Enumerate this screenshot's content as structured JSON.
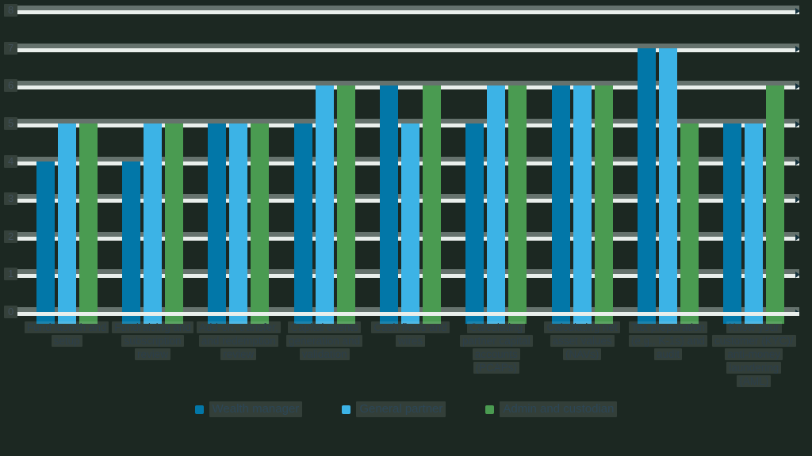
{
  "colors": {
    "background": "#1c2822",
    "gridline": "#e9efec",
    "gridline_shadow": "#77847f",
    "grid_arrow": "#15323e",
    "axis_text": "#41505a",
    "category_text": "#2c3f4a",
    "legend_text": "#2c4656",
    "series_wealth_manager": "#0277a8",
    "series_general_partner": "#3cb3e6",
    "series_admin_custodian": "#4a9b51"
  },
  "chart_data": {
    "type": "bar",
    "title": "",
    "orientation": "vertical",
    "grid": true,
    "legend_position": "bottom",
    "categories": [
      "Fund launch and setup",
      "Fundraising and subscription review",
      "Add-on, transfer, and redemption review",
      "Capital events generation and validation",
      "Cash flows and wires",
      "Calculating partner capital accounts (PCAPs)",
      "Calculating net asset values (NAVs)",
      "Tax preparation (e.g., K-1s) and audit",
      "Know your customer (KYC)/ anti-money laundering (AML)"
    ],
    "series": [
      {
        "name": "Wealth manager",
        "color": "#0277a8",
        "values": [
          4,
          4,
          5,
          5,
          6,
          5,
          6,
          7,
          5
        ]
      },
      {
        "name": "General partner",
        "color": "#3cb3e6",
        "values": [
          5,
          5,
          5,
          6,
          5,
          6,
          6,
          7,
          5
        ]
      },
      {
        "name": "Admin and custodian",
        "color": "#4a9b51",
        "values": [
          5,
          5,
          5,
          6,
          6,
          6,
          6,
          5,
          6
        ]
      }
    ],
    "y_axis": {
      "min": 0,
      "max": 8,
      "step": 1,
      "tick_labels": [
        "0",
        "1",
        "2",
        "3",
        "4",
        "5",
        "6",
        "7",
        "8"
      ]
    },
    "x_axis_label": "",
    "y_axis_label": ""
  }
}
